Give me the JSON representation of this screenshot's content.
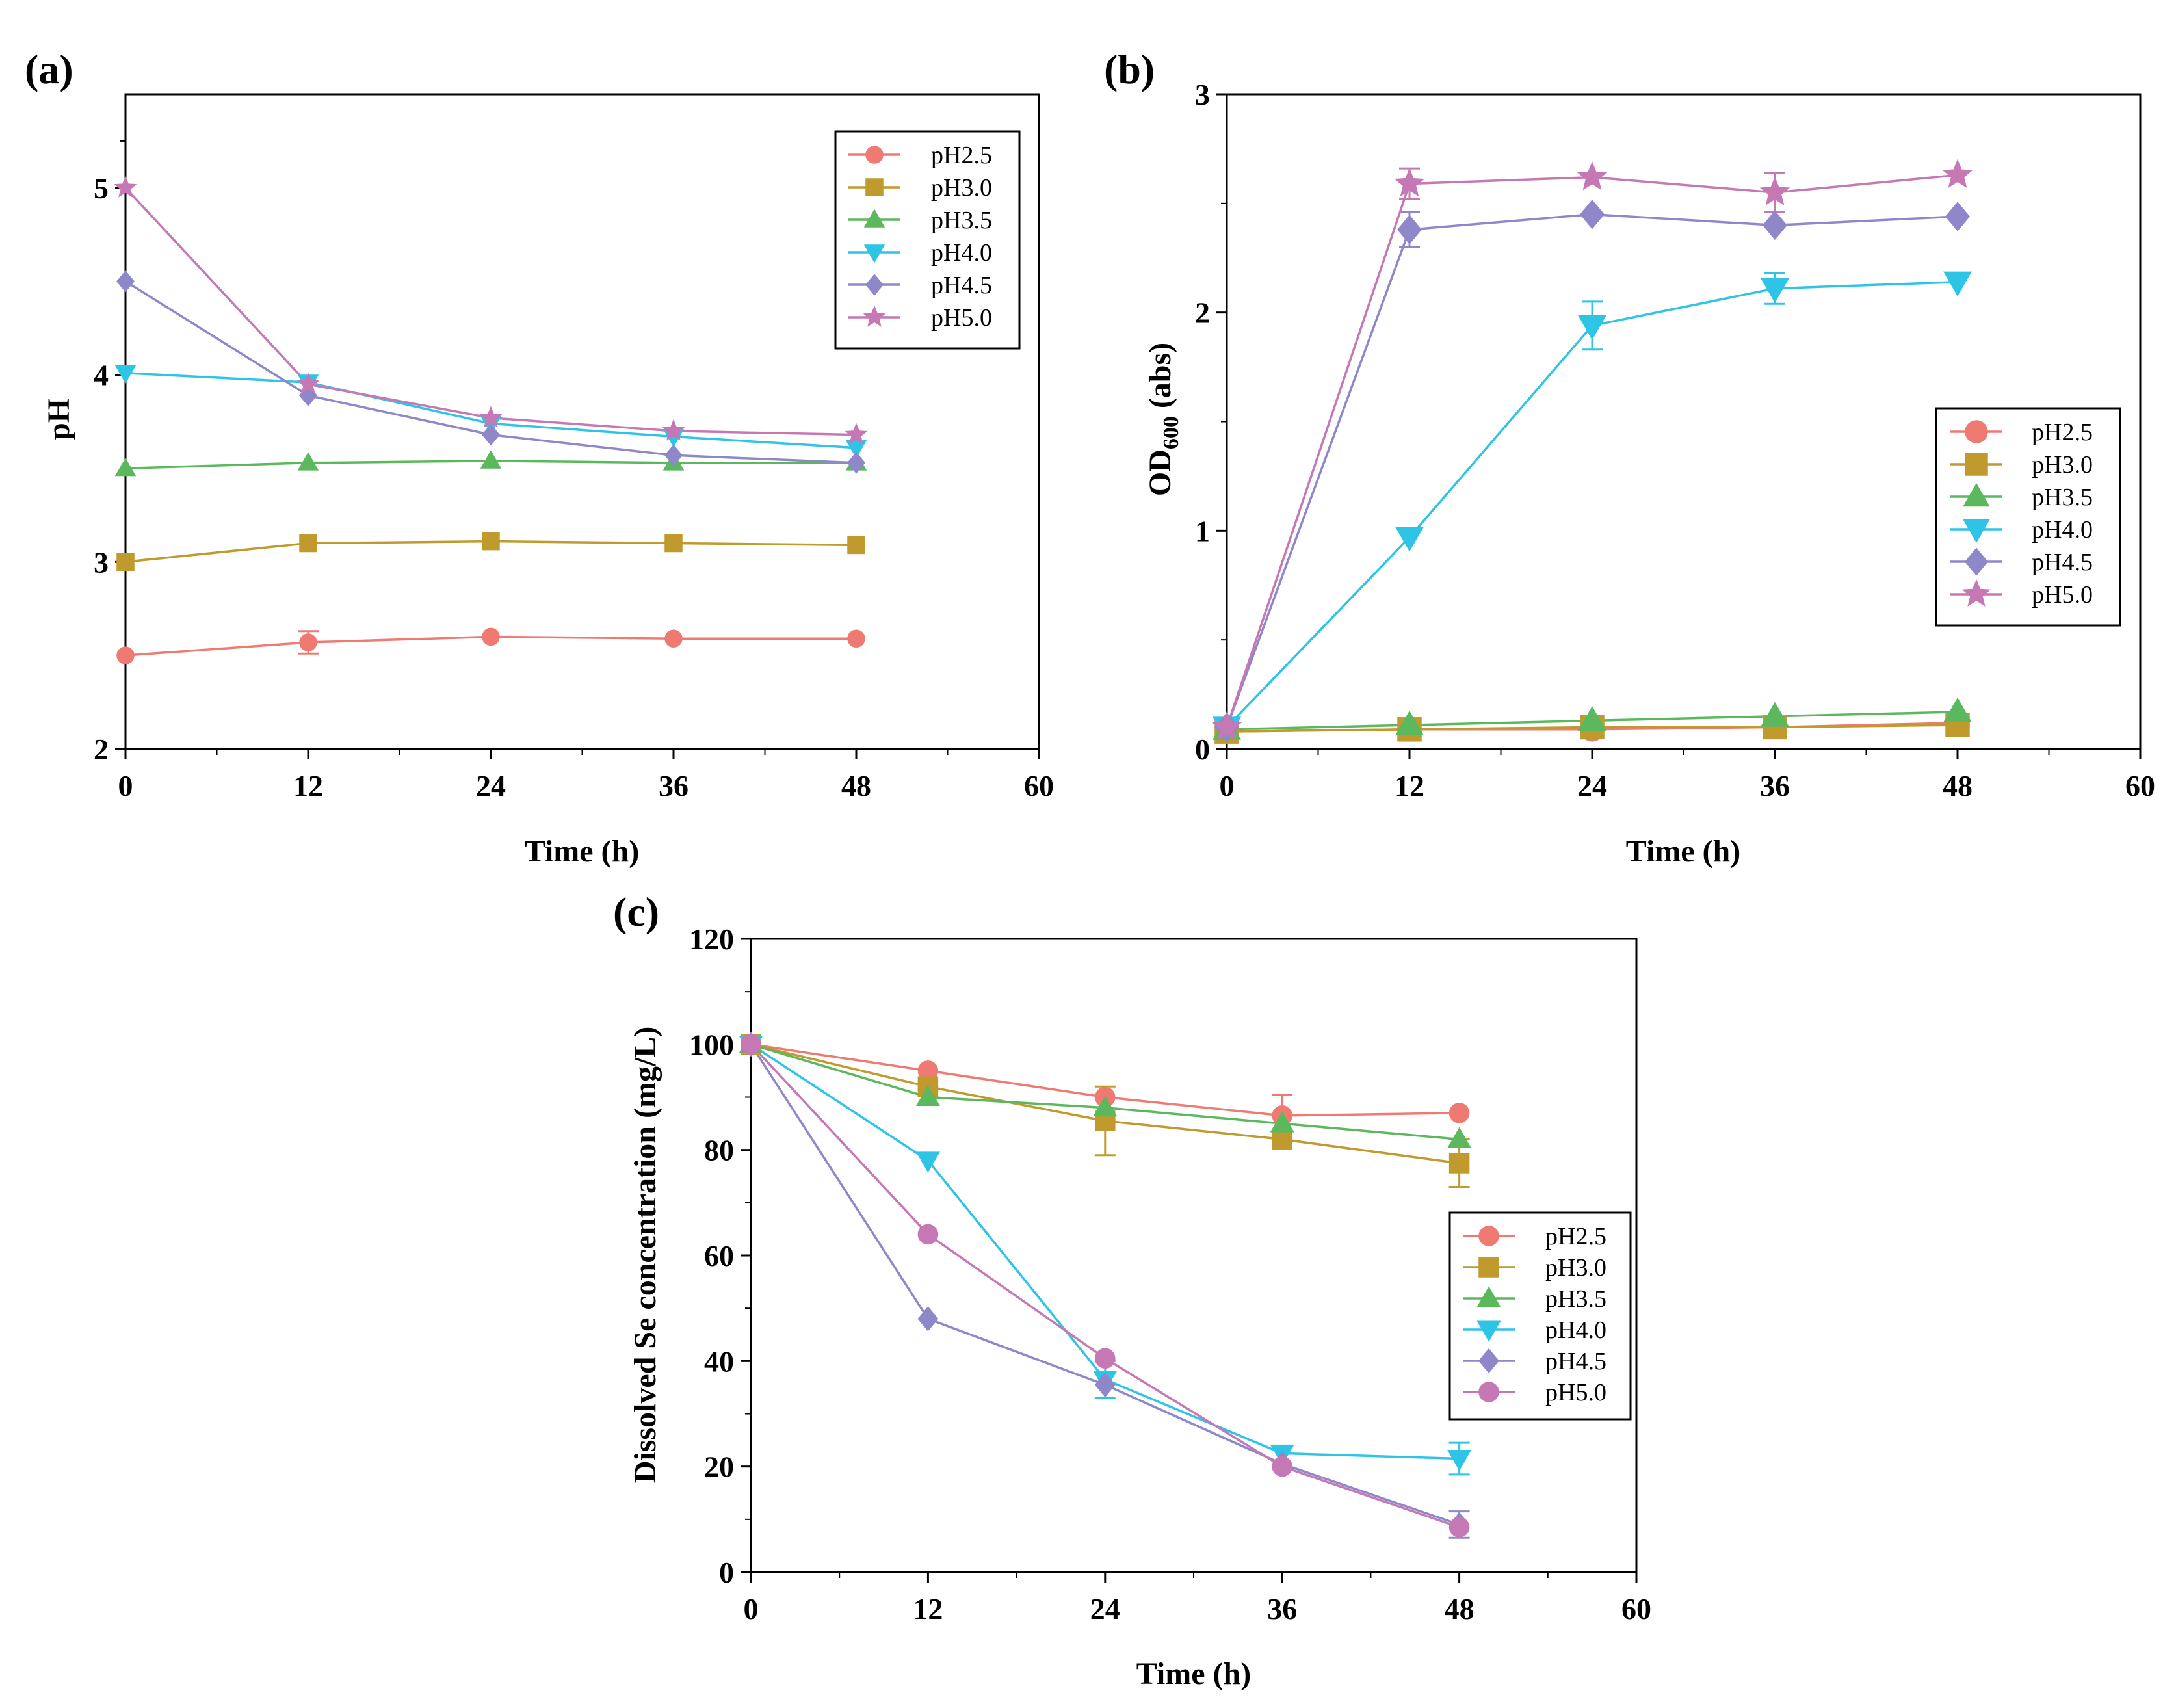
{
  "figure": {
    "colors": {
      "pH2.5": "#ef7a72",
      "pH3.0": "#c09a2c",
      "pH3.5": "#5cb85c",
      "pH4.0": "#2ec4e6",
      "pH4.5": "#8e87c9",
      "pH5.0": "#c678b4"
    }
  },
  "chart_data": [
    {
      "panel": "(a)",
      "type": "line",
      "xlabel": "Time (h)",
      "ylabel": "pH",
      "xlim": [
        0,
        60
      ],
      "ylim": [
        2,
        5.5
      ],
      "xticks": [
        0,
        12,
        24,
        36,
        48,
        60
      ],
      "yticks": [
        2,
        3,
        4,
        5
      ],
      "legend_position": "top-right",
      "x": [
        0,
        12,
        24,
        36,
        48
      ],
      "series": [
        {
          "name": "pH2.5",
          "marker": "circle",
          "color": "#ef7a72",
          "values": [
            2.5,
            2.57,
            2.6,
            2.59,
            2.59
          ],
          "errors": [
            0,
            0.06,
            0,
            0,
            0
          ]
        },
        {
          "name": "pH3.0",
          "marker": "square",
          "color": "#c09a2c",
          "values": [
            3.0,
            3.1,
            3.11,
            3.1,
            3.09
          ],
          "errors": [
            0,
            0,
            0,
            0,
            0
          ]
        },
        {
          "name": "pH3.5",
          "marker": "triangle-up",
          "color": "#5cb85c",
          "values": [
            3.5,
            3.53,
            3.54,
            3.53,
            3.53
          ],
          "errors": [
            0,
            0,
            0,
            0,
            0
          ]
        },
        {
          "name": "pH4.0",
          "marker": "triangle-down",
          "color": "#2ec4e6",
          "values": [
            4.01,
            3.96,
            3.74,
            3.67,
            3.61
          ],
          "errors": [
            0,
            0,
            0,
            0,
            0
          ]
        },
        {
          "name": "pH4.5",
          "marker": "diamond",
          "color": "#8e87c9",
          "values": [
            4.5,
            3.89,
            3.68,
            3.57,
            3.53
          ],
          "errors": [
            0,
            0,
            0,
            0,
            0
          ]
        },
        {
          "name": "pH5.0",
          "marker": "star",
          "color": "#c678b4",
          "values": [
            5.0,
            3.95,
            3.77,
            3.7,
            3.68
          ],
          "errors": [
            0,
            0,
            0,
            0,
            0
          ]
        }
      ],
      "legend_labels": [
        "pH2.5",
        "pH3.0",
        "pH3.5",
        "pH4.0",
        "pH4.5",
        "pH5.0"
      ]
    },
    {
      "panel": "(b)",
      "type": "line",
      "xlabel": "Time (h)",
      "ylabel_main": "OD",
      "ylabel_sub": "600",
      "ylabel_tail": " (abs)",
      "xlim": [
        0,
        60
      ],
      "ylim": [
        0,
        3
      ],
      "xticks": [
        0,
        12,
        24,
        36,
        48,
        60
      ],
      "yticks": [
        0,
        1,
        2,
        3
      ],
      "legend_position": "middle-right",
      "x": [
        0,
        12,
        24,
        36,
        48
      ],
      "series": [
        {
          "name": "pH2.5",
          "marker": "circle",
          "color": "#ef7a72",
          "values": [
            0.08,
            0.09,
            0.09,
            0.1,
            0.12
          ],
          "errors": [
            0,
            0,
            0,
            0,
            0
          ]
        },
        {
          "name": "pH3.0",
          "marker": "square",
          "color": "#c09a2c",
          "values": [
            0.08,
            0.09,
            0.1,
            0.1,
            0.11
          ],
          "errors": [
            0,
            0,
            0,
            0,
            0
          ]
        },
        {
          "name": "pH3.5",
          "marker": "triangle-up",
          "color": "#5cb85c",
          "values": [
            0.09,
            0.11,
            0.13,
            0.15,
            0.17
          ],
          "errors": [
            0,
            0,
            0,
            0,
            0
          ]
        },
        {
          "name": "pH4.0",
          "marker": "triangle-down",
          "color": "#2ec4e6",
          "values": [
            0.1,
            0.97,
            1.94,
            2.11,
            2.14
          ],
          "errors": [
            0,
            0,
            0.11,
            0.07,
            0
          ]
        },
        {
          "name": "pH4.5",
          "marker": "diamond",
          "color": "#8e87c9",
          "values": [
            0.1,
            2.38,
            2.45,
            2.4,
            2.44
          ],
          "errors": [
            0,
            0.08,
            0,
            0,
            0
          ]
        },
        {
          "name": "pH5.0",
          "marker": "star",
          "color": "#c678b4",
          "values": [
            0.1,
            2.59,
            2.62,
            2.55,
            2.63
          ],
          "errors": [
            0,
            0.07,
            0,
            0.09,
            0
          ]
        }
      ],
      "legend_labels": [
        "pH2.5",
        "pH3.0",
        "pH3.5",
        "pH4.0",
        "pH4.5",
        "pH5.0"
      ]
    },
    {
      "panel": "(c)",
      "type": "line",
      "xlabel": "Time (h)",
      "ylabel": "Dissolved Se concentration (mg/L)",
      "xlim": [
        0,
        60
      ],
      "ylim": [
        0,
        120
      ],
      "xticks": [
        0,
        12,
        24,
        36,
        48,
        60
      ],
      "yticks": [
        0,
        20,
        40,
        60,
        80,
        100,
        120
      ],
      "legend_position": "middle-right",
      "x": [
        0,
        12,
        24,
        36,
        48
      ],
      "series": [
        {
          "name": "pH2.5",
          "marker": "circle",
          "color": "#ef7a72",
          "values": [
            100,
            95,
            90,
            86.5,
            87
          ],
          "errors": [
            0,
            0,
            0,
            4,
            0
          ]
        },
        {
          "name": "pH3.0",
          "marker": "square",
          "color": "#c09a2c",
          "values": [
            100,
            92,
            85.5,
            82,
            77.5
          ],
          "errors": [
            0,
            0,
            6.5,
            0,
            4.5
          ]
        },
        {
          "name": "pH3.5",
          "marker": "triangle-up",
          "color": "#5cb85c",
          "values": [
            100,
            90,
            88,
            85,
            82
          ],
          "errors": [
            0,
            0,
            0,
            0,
            0
          ]
        },
        {
          "name": "pH4.0",
          "marker": "triangle-down",
          "color": "#2ec4e6",
          "values": [
            100,
            78,
            36.5,
            22.5,
            21.5
          ],
          "errors": [
            0,
            0,
            3.5,
            0,
            3
          ]
        },
        {
          "name": "pH4.5",
          "marker": "diamond",
          "color": "#8e87c9",
          "values": [
            100,
            48,
            35.5,
            20.5,
            9
          ],
          "errors": [
            0,
            0,
            0,
            0,
            2.5
          ]
        },
        {
          "name": "pH5.0",
          "marker": "circle",
          "color": "#c678b4",
          "values": [
            100,
            64,
            40.5,
            20,
            8.5
          ],
          "errors": [
            0,
            0,
            0,
            0,
            0
          ]
        }
      ],
      "legend_labels": [
        "pH2.5",
        "pH3.0",
        "pH3.5",
        "pH4.0",
        "pH4.5",
        "pH5.0"
      ]
    }
  ]
}
